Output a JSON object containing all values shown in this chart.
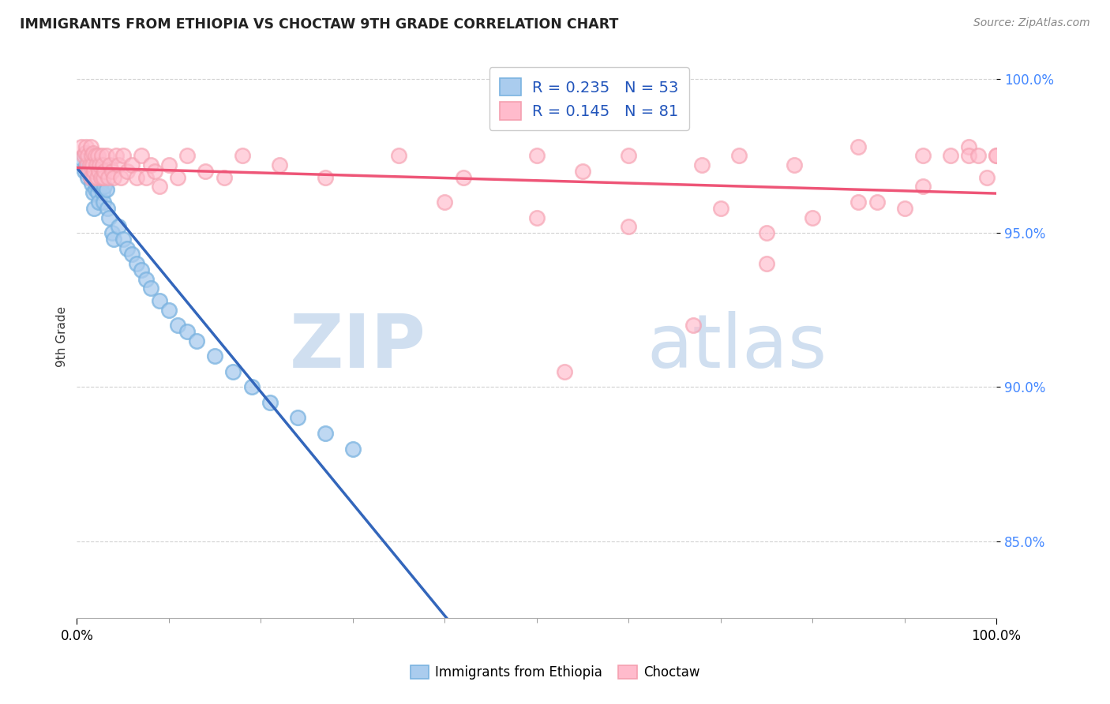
{
  "title": "IMMIGRANTS FROM ETHIOPIA VS CHOCTAW 9TH GRADE CORRELATION CHART",
  "source_text": "Source: ZipAtlas.com",
  "ylabel": "9th Grade",
  "xmin": 0.0,
  "xmax": 1.0,
  "ymin": 0.825,
  "ymax": 1.008,
  "yticks": [
    0.85,
    0.9,
    0.95,
    1.0
  ],
  "ytick_labels": [
    "85.0%",
    "90.0%",
    "95.0%",
    "100.0%"
  ],
  "xtick_labels": [
    "0.0%",
    "100.0%"
  ],
  "legend_r_blue": "0.235",
  "legend_n_blue": "53",
  "legend_r_pink": "0.145",
  "legend_n_pink": "81",
  "blue_color": "#7ab3e0",
  "pink_color": "#f5a0b0",
  "blue_face_color": "#aaccee",
  "pink_face_color": "#ffbbcc",
  "blue_line_color": "#3366bb",
  "pink_line_color": "#ee5577",
  "watermark_zip": "ZIP",
  "watermark_atlas": "atlas",
  "watermark_color": "#d0dff0",
  "background_color": "#ffffff",
  "grid_color": "#cccccc",
  "blue_scatter_x": [
    0.005,
    0.008,
    0.01,
    0.01,
    0.012,
    0.012,
    0.014,
    0.015,
    0.015,
    0.016,
    0.016,
    0.017,
    0.018,
    0.018,
    0.019,
    0.02,
    0.02,
    0.021,
    0.022,
    0.023,
    0.024,
    0.025,
    0.025,
    0.026,
    0.027,
    0.028,
    0.029,
    0.03,
    0.032,
    0.033,
    0.035,
    0.038,
    0.04,
    0.045,
    0.05,
    0.055,
    0.06,
    0.065,
    0.07,
    0.075,
    0.08,
    0.09,
    0.1,
    0.11,
    0.12,
    0.13,
    0.15,
    0.17,
    0.19,
    0.21,
    0.24,
    0.27,
    0.3
  ],
  "blue_scatter_y": [
    0.974,
    0.97,
    0.976,
    0.972,
    0.972,
    0.968,
    0.97,
    0.975,
    0.968,
    0.972,
    0.966,
    0.968,
    0.974,
    0.963,
    0.958,
    0.971,
    0.964,
    0.966,
    0.968,
    0.963,
    0.96,
    0.972,
    0.965,
    0.966,
    0.968,
    0.963,
    0.96,
    0.965,
    0.964,
    0.958,
    0.955,
    0.95,
    0.948,
    0.952,
    0.948,
    0.945,
    0.943,
    0.94,
    0.938,
    0.935,
    0.932,
    0.928,
    0.925,
    0.92,
    0.918,
    0.915,
    0.91,
    0.905,
    0.9,
    0.895,
    0.89,
    0.885,
    0.88
  ],
  "pink_scatter_x": [
    0.005,
    0.007,
    0.009,
    0.01,
    0.011,
    0.012,
    0.013,
    0.014,
    0.015,
    0.015,
    0.016,
    0.017,
    0.018,
    0.018,
    0.019,
    0.02,
    0.021,
    0.022,
    0.023,
    0.024,
    0.025,
    0.026,
    0.027,
    0.028,
    0.029,
    0.03,
    0.032,
    0.034,
    0.036,
    0.038,
    0.04,
    0.043,
    0.045,
    0.048,
    0.05,
    0.055,
    0.06,
    0.065,
    0.07,
    0.075,
    0.08,
    0.085,
    0.09,
    0.1,
    0.11,
    0.12,
    0.14,
    0.16,
    0.18,
    0.22,
    0.27,
    0.35,
    0.42,
    0.5,
    0.55,
    0.6,
    0.68,
    0.72,
    0.78,
    0.85,
    0.92,
    0.97,
    1.0,
    0.4,
    0.5,
    0.6,
    0.7,
    0.75,
    0.8,
    0.85,
    0.9,
    0.95,
    0.97,
    0.98,
    0.99,
    1.0,
    0.53,
    0.67,
    0.75,
    0.87,
    0.92
  ],
  "pink_scatter_y": [
    0.978,
    0.975,
    0.976,
    0.978,
    0.972,
    0.975,
    0.97,
    0.972,
    0.978,
    0.968,
    0.975,
    0.972,
    0.976,
    0.968,
    0.97,
    0.975,
    0.972,
    0.968,
    0.975,
    0.97,
    0.972,
    0.968,
    0.975,
    0.972,
    0.968,
    0.97,
    0.975,
    0.968,
    0.972,
    0.97,
    0.968,
    0.975,
    0.972,
    0.968,
    0.975,
    0.97,
    0.972,
    0.968,
    0.975,
    0.968,
    0.972,
    0.97,
    0.965,
    0.972,
    0.968,
    0.975,
    0.97,
    0.968,
    0.975,
    0.972,
    0.968,
    0.975,
    0.968,
    0.975,
    0.97,
    0.975,
    0.972,
    0.975,
    0.972,
    0.978,
    0.975,
    0.978,
    0.975,
    0.96,
    0.955,
    0.952,
    0.958,
    0.95,
    0.955,
    0.96,
    0.958,
    0.975,
    0.975,
    0.975,
    0.968,
    0.975,
    0.905,
    0.92,
    0.94,
    0.96,
    0.965
  ]
}
